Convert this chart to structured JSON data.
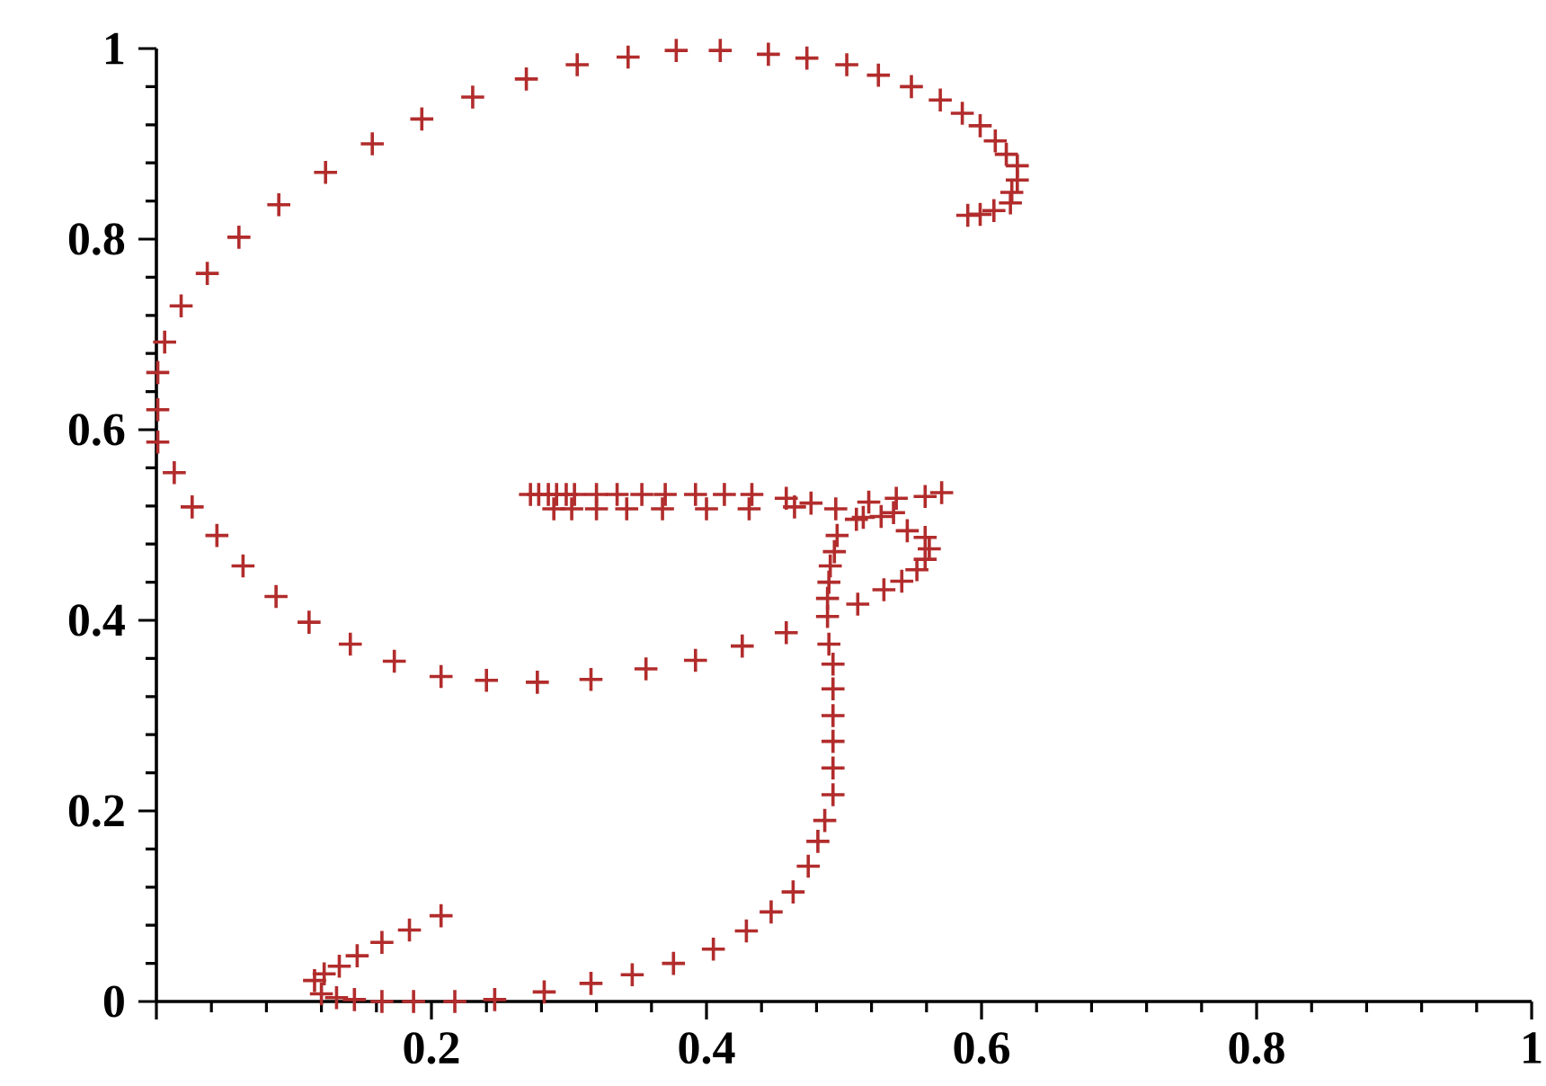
{
  "chart_data": {
    "type": "scatter",
    "marker": "cross",
    "xlim": [
      0,
      1
    ],
    "ylim": [
      0,
      1
    ],
    "xticks": [
      {
        "value": 0,
        "label": null
      },
      0.2,
      0.4,
      0.6,
      0.8,
      1
    ],
    "yticks": [
      0,
      0.2,
      0.4,
      0.6,
      0.8,
      1
    ],
    "series": [
      {
        "color": "#b22c2c",
        "x": [
          0.59,
          0.599,
          0.609,
          0.621,
          0.622,
          0.626,
          0.626,
          0.618,
          0.61,
          0.599,
          0.586,
          0.57,
          0.549,
          0.525,
          0.502,
          0.473,
          0.445,
          0.41,
          0.378,
          0.343,
          0.306,
          0.269,
          0.23,
          0.193,
          0.157,
          0.123,
          0.089,
          0.06,
          0.037,
          0.018,
          0.006,
          0.001,
          0.001,
          0.001,
          0.013,
          0.026,
          0.044,
          0.063,
          0.087,
          0.111,
          0.141,
          0.173,
          0.207,
          0.24,
          0.277,
          0.316,
          0.356,
          0.392,
          0.426,
          0.458,
          0.51,
          0.529,
          0.542,
          0.553,
          0.559,
          0.562,
          0.559,
          0.546,
          0.536,
          0.538,
          0.559,
          0.571,
          0.527,
          0.514,
          0.509,
          0.518,
          0.494,
          0.272,
          0.278,
          0.285,
          0.291,
          0.298,
          0.304,
          0.32,
          0.335,
          0.353,
          0.37,
          0.392,
          0.413,
          0.433,
          0.289,
          0.302,
          0.32,
          0.342,
          0.368,
          0.4,
          0.431,
          0.458,
          0.464,
          0.476,
          0.495,
          0.493,
          0.49,
          0.489,
          0.488,
          0.488,
          0.489,
          0.492,
          0.492,
          0.492,
          0.492,
          0.492,
          0.492,
          0.486,
          0.481,
          0.474,
          0.463,
          0.447,
          0.429,
          0.405,
          0.376,
          0.346,
          0.316,
          0.282,
          0.246,
          0.217,
          0.187,
          0.164,
          0.144,
          0.131,
          0.12,
          0.115,
          0.122,
          0.133,
          0.146,
          0.164,
          0.184,
          0.207
        ],
        "values": [
          0.825,
          0.826,
          0.83,
          0.838,
          0.849,
          0.862,
          0.877,
          0.889,
          0.903,
          0.919,
          0.932,
          0.946,
          0.96,
          0.972,
          0.983,
          0.99,
          0.994,
          0.998,
          0.998,
          0.991,
          0.983,
          0.968,
          0.949,
          0.926,
          0.9,
          0.87,
          0.836,
          0.802,
          0.764,
          0.73,
          0.692,
          0.66,
          0.621,
          0.587,
          0.555,
          0.519,
          0.489,
          0.457,
          0.425,
          0.398,
          0.375,
          0.357,
          0.341,
          0.337,
          0.335,
          0.338,
          0.349,
          0.358,
          0.373,
          0.387,
          0.417,
          0.432,
          0.441,
          0.453,
          0.464,
          0.475,
          0.487,
          0.494,
          0.513,
          0.528,
          0.53,
          0.534,
          0.509,
          0.508,
          0.506,
          0.524,
          0.517,
          0.532,
          0.532,
          0.532,
          0.532,
          0.532,
          0.532,
          0.532,
          0.532,
          0.532,
          0.532,
          0.532,
          0.532,
          0.532,
          0.517,
          0.517,
          0.517,
          0.517,
          0.517,
          0.517,
          0.517,
          0.528,
          0.519,
          0.523,
          0.489,
          0.472,
          0.457,
          0.44,
          0.423,
          0.404,
          0.375,
          0.354,
          0.328,
          0.3,
          0.273,
          0.245,
          0.217,
          0.19,
          0.168,
          0.142,
          0.115,
          0.094,
          0.074,
          0.055,
          0.04,
          0.028,
          0.019,
          0.01,
          0.002,
          0.0,
          0.0,
          0.0,
          0.002,
          0.004,
          0.008,
          0.022,
          0.029,
          0.037,
          0.048,
          0.062,
          0.075,
          0.09
        ]
      }
    ]
  }
}
